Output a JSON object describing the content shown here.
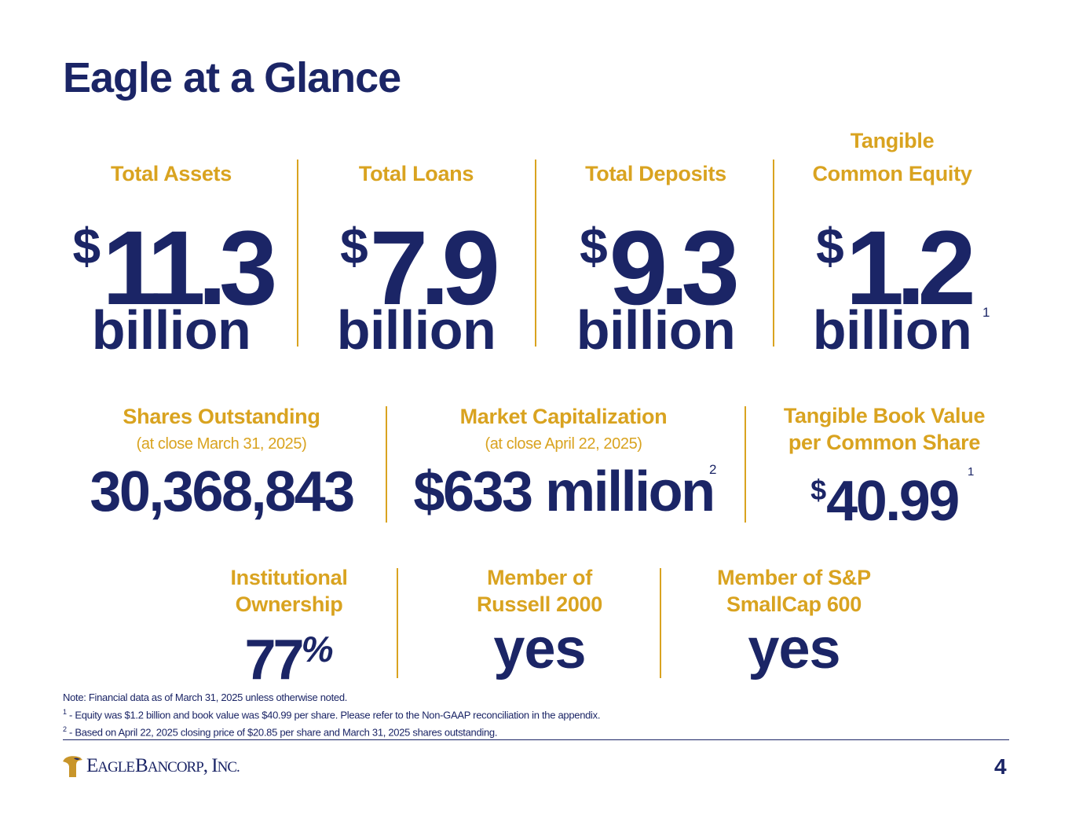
{
  "title": "Eagle at a Glance",
  "currency_symbol": "$",
  "metrics_row1": [
    {
      "label_line1": "",
      "label_line2": "Total Assets",
      "value": "11.3",
      "unit": "billion",
      "footnote": ""
    },
    {
      "label_line1": "",
      "label_line2": "Total Loans",
      "value": "7.9",
      "unit": "billion",
      "footnote": ""
    },
    {
      "label_line1": "",
      "label_line2": "Total Deposits",
      "value": "9.3",
      "unit": "billion",
      "footnote": ""
    },
    {
      "label_line1": "Tangible",
      "label_line2": "Common Equity",
      "value": "1.2",
      "unit": "billion",
      "footnote": "1"
    }
  ],
  "metrics_row2": [
    {
      "label": "Shares Outstanding",
      "sublabel": "(at close March 31, 2025)",
      "value": "30,368,843",
      "footnote": ""
    },
    {
      "label": "Market Capitalization",
      "sublabel": "(at close April 22, 2025)",
      "value": "$633 million",
      "footnote": "2"
    },
    {
      "label_line1": "Tangible Book Value",
      "label_line2": "per Common Share",
      "value": "40.99",
      "footnote": "1"
    }
  ],
  "metrics_row3": [
    {
      "label_line1": "Institutional",
      "label_line2": "Ownership",
      "value": "77",
      "unit": "%"
    },
    {
      "label_line1": "Member of",
      "label_line2": "Russell 2000",
      "value": "yes"
    },
    {
      "label_line1": "Member of S&P",
      "label_line2": "SmallCap 600",
      "value": "yes"
    }
  ],
  "notes": {
    "note": "Note: Financial data as of March 31, 2025 unless otherwise noted.",
    "fn1_mark": "1",
    "fn1": " - Equity was $1.2 billion and book value was $40.99 per share. Please refer to the Non-GAAP reconciliation in the appendix.",
    "fn2_mark": "2",
    "fn2": " - Based on April 22, 2025 closing price of $20.85 per share and March 31, 2025 shares outstanding."
  },
  "footer": {
    "logo_initial_1": "E",
    "logo_rest_1": "AGLE",
    "logo_initial_2": "B",
    "logo_rest_2": "ANCORP",
    "logo_suffix": ", I",
    "logo_rest_3": "NC.",
    "page_number": "4"
  },
  "colors": {
    "navy": "#1b2566",
    "gold": "#d9a320"
  }
}
